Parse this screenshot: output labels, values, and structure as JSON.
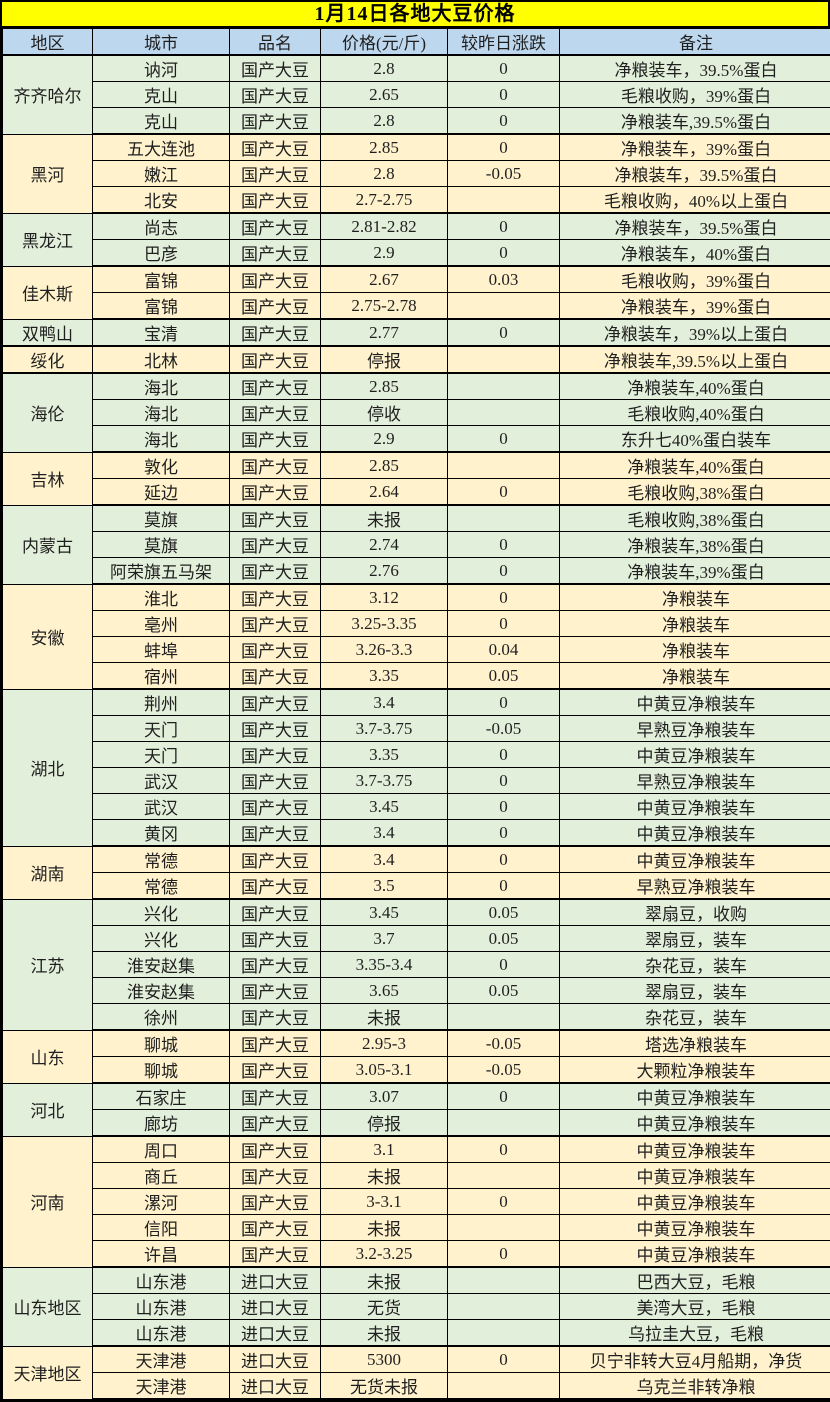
{
  "title": "1月14日各地大豆价格",
  "columns": [
    "地区",
    "城市",
    "品名",
    "价格(元/斤)",
    "较昨日涨跌",
    "备注"
  ],
  "colors": {
    "title_bg": "#FFFF00",
    "header_bg": "#BDD7EE",
    "group_green": "#E2EFDA",
    "group_cream": "#FFF2CC",
    "border": "#000000"
  },
  "groups": [
    {
      "region": "齐齐哈尔",
      "shade": "green",
      "rows": [
        {
          "city": "讷河",
          "product": "国产大豆",
          "price": "2.8",
          "change": "0",
          "note": "净粮装车，39.5%蛋白"
        },
        {
          "city": "克山",
          "product": "国产大豆",
          "price": "2.65",
          "change": "0",
          "note": "毛粮收购，39%蛋白"
        },
        {
          "city": "克山",
          "product": "国产大豆",
          "price": "2.8",
          "change": "0",
          "note": "净粮装车,39.5%蛋白"
        }
      ]
    },
    {
      "region": "黑河",
      "shade": "cream",
      "rows": [
        {
          "city": "五大连池",
          "product": "国产大豆",
          "price": "2.85",
          "change": "0",
          "note": "净粮装车，39%蛋白"
        },
        {
          "city": "嫩江",
          "product": "国产大豆",
          "price": "2.8",
          "change": "-0.05",
          "note": "净粮装车，39.5%蛋白"
        },
        {
          "city": "北安",
          "product": "国产大豆",
          "price": "2.7-2.75",
          "change": "",
          "note": "毛粮收购，40%以上蛋白"
        }
      ]
    },
    {
      "region": "黑龙江",
      "shade": "green",
      "rows": [
        {
          "city": "尚志",
          "product": "国产大豆",
          "price": "2.81-2.82",
          "change": "0",
          "note": "净粮装车，39.5%蛋白"
        },
        {
          "city": "巴彦",
          "product": "国产大豆",
          "price": "2.9",
          "change": "0",
          "note": "净粮装车，40%蛋白"
        }
      ]
    },
    {
      "region": "佳木斯",
      "shade": "cream",
      "rows": [
        {
          "city": "富锦",
          "product": "国产大豆",
          "price": "2.67",
          "change": "0.03",
          "note": "毛粮收购，39%蛋白"
        },
        {
          "city": "富锦",
          "product": "国产大豆",
          "price": "2.75-2.78",
          "change": "",
          "note": "净粮装车，39%蛋白"
        }
      ]
    },
    {
      "region": "双鸭山",
      "shade": "green",
      "rows": [
        {
          "city": "宝清",
          "product": "国产大豆",
          "price": "2.77",
          "change": "0",
          "note": "净粮装车，39%以上蛋白"
        }
      ]
    },
    {
      "region": "绥化",
      "shade": "cream",
      "rows": [
        {
          "city": "北林",
          "product": "国产大豆",
          "price": "停报",
          "change": "",
          "note": "净粮装车,39.5%以上蛋白"
        }
      ]
    },
    {
      "region": "海伦",
      "shade": "green",
      "rows": [
        {
          "city": "海北",
          "product": "国产大豆",
          "price": "2.85",
          "change": "",
          "note": "净粮装车,40%蛋白"
        },
        {
          "city": "海北",
          "product": "国产大豆",
          "price": "停收",
          "change": "",
          "note": "毛粮收购,40%蛋白"
        },
        {
          "city": "海北",
          "product": "国产大豆",
          "price": "2.9",
          "change": "0",
          "note": "东升七40%蛋白装车"
        }
      ]
    },
    {
      "region": "吉林",
      "shade": "cream",
      "rows": [
        {
          "city": "敦化",
          "product": "国产大豆",
          "price": "2.85",
          "change": "",
          "note": "净粮装车,40%蛋白"
        },
        {
          "city": "延边",
          "product": "国产大豆",
          "price": "2.64",
          "change": "0",
          "note": "毛粮收购,38%蛋白"
        }
      ]
    },
    {
      "region": "内蒙古",
      "shade": "green",
      "rows": [
        {
          "city": "莫旗",
          "product": "国产大豆",
          "price": "未报",
          "change": "",
          "note": "毛粮收购,38%蛋白"
        },
        {
          "city": "莫旗",
          "product": "国产大豆",
          "price": "2.74",
          "change": "0",
          "note": "净粮装车,38%蛋白"
        },
        {
          "city": "阿荣旗五马架",
          "product": "国产大豆",
          "price": "2.76",
          "change": "0",
          "note": "净粮装车,39%蛋白"
        }
      ]
    },
    {
      "region": "安徽",
      "shade": "cream",
      "rows": [
        {
          "city": "淮北",
          "product": "国产大豆",
          "price": "3.12",
          "change": "0",
          "note": "净粮装车"
        },
        {
          "city": "亳州",
          "product": "国产大豆",
          "price": "3.25-3.35",
          "change": "0",
          "note": "净粮装车"
        },
        {
          "city": "蚌埠",
          "product": "国产大豆",
          "price": "3.26-3.3",
          "change": "0.04",
          "note": "净粮装车"
        },
        {
          "city": "宿州",
          "product": "国产大豆",
          "price": "3.35",
          "change": "0.05",
          "note": "净粮装车"
        }
      ]
    },
    {
      "region": "湖北",
      "shade": "green",
      "rows": [
        {
          "city": "荆州",
          "product": "国产大豆",
          "price": "3.4",
          "change": "0",
          "note": "中黄豆净粮装车"
        },
        {
          "city": "天门",
          "product": "国产大豆",
          "price": "3.7-3.75",
          "change": "-0.05",
          "note": "早熟豆净粮装车"
        },
        {
          "city": "天门",
          "product": "国产大豆",
          "price": "3.35",
          "change": "0",
          "note": "中黄豆净粮装车"
        },
        {
          "city": "武汉",
          "product": "国产大豆",
          "price": "3.7-3.75",
          "change": "0",
          "note": "早熟豆净粮装车"
        },
        {
          "city": "武汉",
          "product": "国产大豆",
          "price": "3.45",
          "change": "0",
          "note": "中黄豆净粮装车"
        },
        {
          "city": "黄冈",
          "product": "国产大豆",
          "price": "3.4",
          "change": "0",
          "note": "中黄豆净粮装车"
        }
      ]
    },
    {
      "region": "湖南",
      "shade": "cream",
      "rows": [
        {
          "city": "常德",
          "product": "国产大豆",
          "price": "3.4",
          "change": "0",
          "note": "中黄豆净粮装车"
        },
        {
          "city": "常德",
          "product": "国产大豆",
          "price": "3.5",
          "change": "0",
          "note": "早熟豆净粮装车"
        }
      ]
    },
    {
      "region": "江苏",
      "shade": "green",
      "rows": [
        {
          "city": "兴化",
          "product": "国产大豆",
          "price": "3.45",
          "change": "0.05",
          "note": "翠扇豆，收购"
        },
        {
          "city": "兴化",
          "product": "国产大豆",
          "price": "3.7",
          "change": "0.05",
          "note": "翠扇豆，装车"
        },
        {
          "city": "淮安赵集",
          "product": "国产大豆",
          "price": "3.35-3.4",
          "change": "0",
          "note": "杂花豆，装车"
        },
        {
          "city": "淮安赵集",
          "product": "国产大豆",
          "price": "3.65",
          "change": "0.05",
          "note": "翠扇豆，装车"
        },
        {
          "city": "徐州",
          "product": "国产大豆",
          "price": "未报",
          "change": "",
          "note": "杂花豆，装车"
        }
      ]
    },
    {
      "region": "山东",
      "shade": "cream",
      "rows": [
        {
          "city": "聊城",
          "product": "国产大豆",
          "price": "2.95-3",
          "change": "-0.05",
          "note": "塔选净粮装车"
        },
        {
          "city": "聊城",
          "product": "国产大豆",
          "price": "3.05-3.1",
          "change": "-0.05",
          "note": "大颗粒净粮装车"
        }
      ]
    },
    {
      "region": "河北",
      "shade": "green",
      "rows": [
        {
          "city": "石家庄",
          "product": "国产大豆",
          "price": "3.07",
          "change": "0",
          "note": "中黄豆净粮装车"
        },
        {
          "city": "廊坊",
          "product": "国产大豆",
          "price": "停报",
          "change": "",
          "note": "中黄豆净粮装车"
        }
      ]
    },
    {
      "region": "河南",
      "shade": "cream",
      "rows": [
        {
          "city": "周口",
          "product": "国产大豆",
          "price": "3.1",
          "change": "0",
          "note": "中黄豆净粮装车"
        },
        {
          "city": "商丘",
          "product": "国产大豆",
          "price": "未报",
          "change": "",
          "note": "中黄豆净粮装车"
        },
        {
          "city": "漯河",
          "product": "国产大豆",
          "price": "3-3.1",
          "change": "0",
          "note": "中黄豆净粮装车"
        },
        {
          "city": "信阳",
          "product": "国产大豆",
          "price": "未报",
          "change": "",
          "note": "中黄豆净粮装车"
        },
        {
          "city": "许昌",
          "product": "国产大豆",
          "price": "3.2-3.25",
          "change": "0",
          "note": "中黄豆净粮装车"
        }
      ]
    },
    {
      "region": "山东地区",
      "shade": "green",
      "rows": [
        {
          "city": "山东港",
          "product": "进口大豆",
          "price": "未报",
          "change": "",
          "note": "巴西大豆，毛粮"
        },
        {
          "city": "山东港",
          "product": "进口大豆",
          "price": "无货",
          "change": "",
          "note": "美湾大豆，毛粮"
        },
        {
          "city": "山东港",
          "product": "进口大豆",
          "price": "未报",
          "change": "",
          "note": "乌拉圭大豆，毛粮"
        }
      ]
    },
    {
      "region": "天津地区",
      "shade": "cream",
      "rows": [
        {
          "city": "天津港",
          "product": "进口大豆",
          "price": "5300",
          "change": "0",
          "note": "贝宁非转大豆4月船期，净货"
        },
        {
          "city": "天津港",
          "product": "进口大豆",
          "price": "无货未报",
          "change": "",
          "note": "乌克兰非转净粮"
        }
      ]
    }
  ]
}
